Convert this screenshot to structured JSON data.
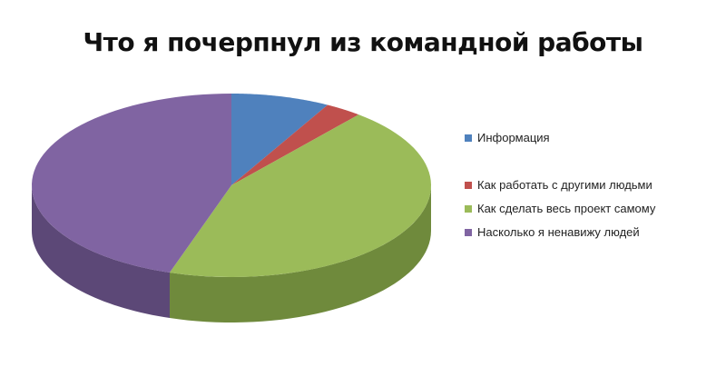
{
  "chart_data": {
    "type": "pie",
    "three_d": true,
    "title": "Что я почерпнул из командной работы",
    "categories": [
      "Информация",
      "Как работать с другими людьми",
      "Как сделать весь проект самому",
      "Насколько я ненавижу людей"
    ],
    "values": [
      8,
      3,
      44,
      45
    ],
    "colors": [
      "#4f81bd",
      "#c0504d",
      "#9bbb59",
      "#8064a2"
    ],
    "side_colors": [
      "#3a6090",
      "#8f3a38",
      "#6f8a3c",
      "#5c4877"
    ],
    "legend_position": "right"
  }
}
